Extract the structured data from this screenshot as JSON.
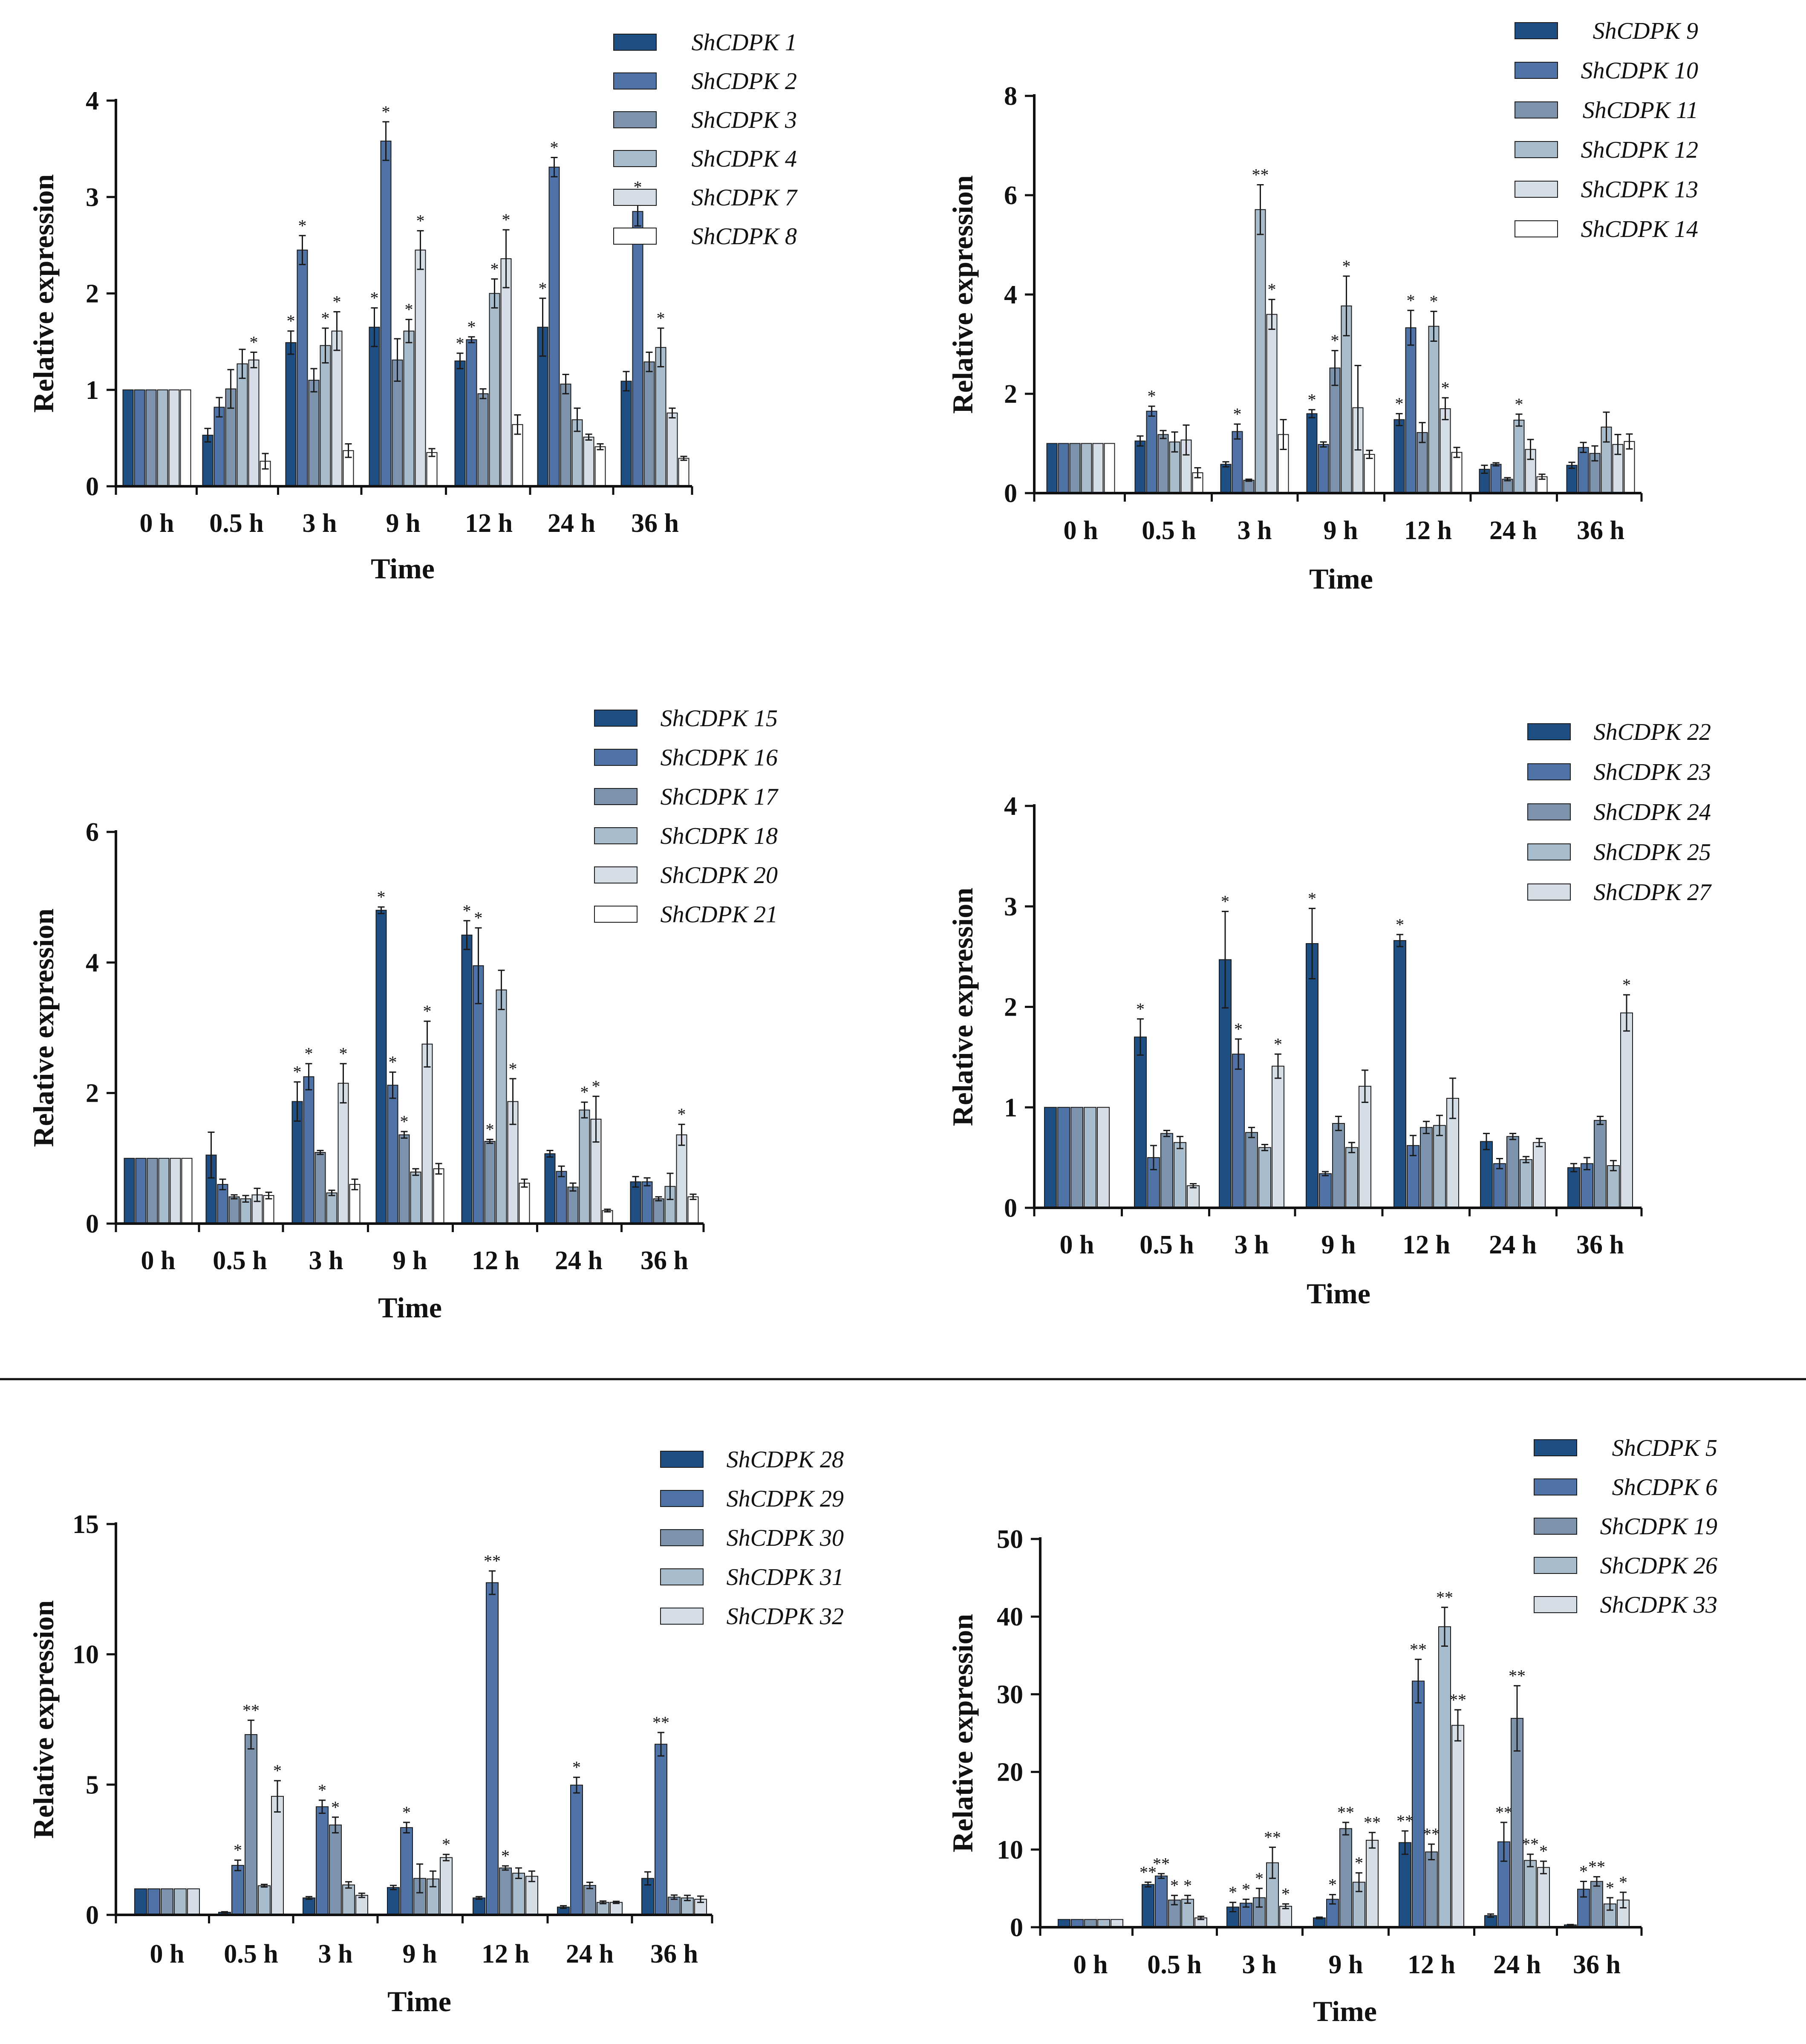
{
  "colors": [
    "#1f4e82",
    "#4f73a6",
    "#7d93ab",
    "#a9bccc",
    "#d5dee6",
    "#ffffff"
  ],
  "chart_data": [
    {
      "type": "bar",
      "categories": [
        "0 h",
        "0.5 h",
        "3 h",
        "9 h",
        "12 h",
        "24 h",
        "36 h"
      ],
      "xlabel": "Time",
      "ylabel": "Relative expression",
      "ylim": [
        0,
        4
      ],
      "yticks": [
        "0",
        "1",
        "2",
        "3",
        "4"
      ],
      "series": [
        {
          "name": "ShCDPK 1",
          "values": [
            1,
            0.53,
            1.49,
            1.65,
            1.3,
            1.65,
            1.09
          ],
          "errors": [
            0,
            0.07,
            0.12,
            0.2,
            0.08,
            0.3,
            0.1
          ],
          "sig": [
            "",
            "",
            "*",
            "*",
            "*",
            "*",
            ""
          ]
        },
        {
          "name": "ShCDPK 2",
          "values": [
            1,
            0.82,
            2.45,
            3.58,
            1.52,
            3.31,
            2.85
          ],
          "errors": [
            0,
            0.1,
            0.15,
            0.2,
            0.03,
            0.1,
            0.15
          ],
          "sig": [
            "",
            "",
            "*",
            "*",
            "*",
            "*",
            "*"
          ]
        },
        {
          "name": "ShCDPK 3",
          "values": [
            1,
            1.01,
            1.1,
            1.31,
            0.96,
            1.06,
            1.29
          ],
          "errors": [
            0,
            0.2,
            0.12,
            0.22,
            0.05,
            0.1,
            0.1
          ],
          "sig": [
            "",
            "",
            "",
            "",
            "",
            "",
            ""
          ]
        },
        {
          "name": "ShCDPK 4",
          "values": [
            1,
            1.27,
            1.46,
            1.61,
            2.0,
            0.69,
            1.44
          ],
          "errors": [
            0,
            0.15,
            0.18,
            0.12,
            0.15,
            0.12,
            0.2
          ],
          "sig": [
            "",
            "",
            "*",
            "*",
            "*",
            "",
            "*"
          ]
        },
        {
          "name": "ShCDPK 7",
          "values": [
            1,
            1.31,
            1.61,
            2.45,
            2.36,
            0.51,
            0.76
          ],
          "errors": [
            0,
            0.08,
            0.2,
            0.2,
            0.3,
            0.03,
            0.05
          ],
          "sig": [
            "",
            "*",
            "*",
            "*",
            "*",
            "",
            ""
          ]
        },
        {
          "name": "ShCDPK 8",
          "values": [
            1,
            0.26,
            0.37,
            0.35,
            0.64,
            0.41,
            0.29
          ],
          "errors": [
            0,
            0.08,
            0.07,
            0.04,
            0.1,
            0.03,
            0.02
          ],
          "sig": [
            "",
            "",
            "",
            "",
            "",
            "",
            ""
          ]
        }
      ]
    },
    {
      "type": "bar",
      "categories": [
        "0 h",
        "0.5 h",
        "3 h",
        "9 h",
        "12 h",
        "24 h",
        "36 h"
      ],
      "xlabel": "Time",
      "ylabel": "Relative expression",
      "ylim": [
        0,
        8
      ],
      "yticks": [
        "0",
        "2",
        "4",
        "6",
        "8"
      ],
      "series": [
        {
          "name": "ShCDPK 9",
          "values": [
            1,
            1.05,
            0.58,
            1.6,
            1.48,
            0.48,
            0.56
          ],
          "errors": [
            0,
            0.1,
            0.05,
            0.08,
            0.12,
            0.08,
            0.06
          ],
          "sig": [
            "",
            "",
            "",
            "*",
            "*",
            "",
            ""
          ]
        },
        {
          "name": "ShCDPK 10",
          "values": [
            1,
            1.65,
            1.24,
            0.98,
            3.33,
            0.58,
            0.92
          ],
          "errors": [
            0,
            0.1,
            0.15,
            0.05,
            0.35,
            0.03,
            0.1
          ],
          "sig": [
            "",
            "*",
            "*",
            "",
            "*",
            "",
            ""
          ]
        },
        {
          "name": "ShCDPK 11",
          "values": [
            1,
            1.18,
            0.26,
            2.52,
            1.22,
            0.28,
            0.8
          ],
          "errors": [
            0,
            0.08,
            0.02,
            0.35,
            0.2,
            0.03,
            0.15
          ],
          "sig": [
            "",
            "",
            "",
            "*",
            "",
            "",
            ""
          ]
        },
        {
          "name": "ShCDPK 12",
          "values": [
            1,
            1.03,
            5.71,
            3.77,
            3.36,
            1.47,
            1.33
          ],
          "errors": [
            0,
            0.2,
            0.5,
            0.6,
            0.3,
            0.12,
            0.3
          ],
          "sig": [
            "",
            "",
            "**",
            "*",
            "*",
            "*",
            ""
          ]
        },
        {
          "name": "ShCDPK 13",
          "values": [
            1,
            1.07,
            3.6,
            1.72,
            1.7,
            0.88,
            0.98
          ],
          "errors": [
            0,
            0.3,
            0.3,
            0.85,
            0.22,
            0.2,
            0.2
          ],
          "sig": [
            "",
            "",
            "*",
            "",
            "*",
            "",
            ""
          ]
        },
        {
          "name": "ShCDPK 14",
          "values": [
            1,
            0.41,
            1.18,
            0.78,
            0.82,
            0.33,
            1.04
          ],
          "errors": [
            0,
            0.1,
            0.3,
            0.08,
            0.1,
            0.05,
            0.15
          ],
          "sig": [
            "",
            "",
            "",
            "",
            "",
            "",
            ""
          ]
        }
      ]
    },
    {
      "type": "bar",
      "categories": [
        "0 h",
        "0.5 h",
        "3 h",
        "9 h",
        "12 h",
        "24 h",
        "36 h"
      ],
      "xlabel": "Time",
      "ylabel": "Relative expression",
      "ylim": [
        0,
        6
      ],
      "yticks": [
        "0",
        "2",
        "4",
        "6"
      ],
      "series": [
        {
          "name": "ShCDPK 15",
          "values": [
            1,
            1.05,
            1.87,
            4.8,
            4.42,
            1.07,
            0.64
          ],
          "errors": [
            0,
            0.35,
            0.3,
            0.05,
            0.22,
            0.05,
            0.08
          ],
          "sig": [
            "",
            "",
            "*",
            "*",
            "*",
            "",
            ""
          ]
        },
        {
          "name": "ShCDPK 16",
          "values": [
            1,
            0.6,
            2.25,
            2.12,
            3.95,
            0.8,
            0.64
          ],
          "errors": [
            0,
            0.08,
            0.2,
            0.2,
            0.58,
            0.08,
            0.06
          ],
          "sig": [
            "",
            "",
            "*",
            "*",
            "*",
            "",
            ""
          ]
        },
        {
          "name": "ShCDPK 17",
          "values": [
            1,
            0.41,
            1.09,
            1.36,
            1.26,
            0.56,
            0.38
          ],
          "errors": [
            0,
            0.03,
            0.03,
            0.05,
            0.03,
            0.06,
            0.03
          ],
          "sig": [
            "",
            "",
            "",
            "*",
            "*",
            "",
            ""
          ]
        },
        {
          "name": "ShCDPK 18",
          "values": [
            1,
            0.38,
            0.47,
            0.79,
            3.58,
            1.74,
            0.57
          ],
          "errors": [
            0,
            0.05,
            0.04,
            0.05,
            0.3,
            0.12,
            0.2
          ],
          "sig": [
            "",
            "",
            "",
            "",
            "",
            "*",
            ""
          ]
        },
        {
          "name": "ShCDPK 20",
          "values": [
            1,
            0.44,
            2.15,
            2.75,
            1.87,
            1.6,
            1.36
          ],
          "errors": [
            0,
            0.1,
            0.3,
            0.35,
            0.35,
            0.35,
            0.16
          ],
          "sig": [
            "",
            "",
            "*",
            "*",
            "*",
            "*",
            "*"
          ]
        },
        {
          "name": "ShCDPK 21",
          "values": [
            1,
            0.43,
            0.6,
            0.84,
            0.62,
            0.2,
            0.41
          ],
          "errors": [
            0,
            0.05,
            0.08,
            0.08,
            0.06,
            0.02,
            0.04
          ],
          "sig": [
            "",
            "",
            "",
            "",
            "",
            "",
            ""
          ]
        }
      ]
    },
    {
      "type": "bar",
      "categories": [
        "0 h",
        "0.5 h",
        "3 h",
        "9 h",
        "12 h",
        "24 h",
        "36 h"
      ],
      "xlabel": "Time",
      "ylabel": "Relative expression",
      "ylim": [
        0,
        4
      ],
      "yticks": [
        "0",
        "1",
        "2",
        "3",
        "4"
      ],
      "series": [
        {
          "name": "ShCDPK 22",
          "values": [
            1,
            1.7,
            2.47,
            2.63,
            2.66,
            0.66,
            0.4
          ],
          "errors": [
            0,
            0.18,
            0.48,
            0.35,
            0.06,
            0.08,
            0.04
          ],
          "sig": [
            "",
            "*",
            "*",
            "*",
            "*",
            "",
            ""
          ]
        },
        {
          "name": "ShCDPK 23",
          "values": [
            1,
            0.5,
            1.53,
            0.34,
            0.62,
            0.44,
            0.44
          ],
          "errors": [
            0,
            0.12,
            0.15,
            0.02,
            0.1,
            0.05,
            0.06
          ],
          "sig": [
            "",
            "",
            "*",
            "",
            "",
            "",
            ""
          ]
        },
        {
          "name": "ShCDPK 24",
          "values": [
            1,
            0.74,
            0.75,
            0.84,
            0.8,
            0.71,
            0.87
          ],
          "errors": [
            0,
            0.03,
            0.05,
            0.07,
            0.06,
            0.03,
            0.04
          ],
          "sig": [
            "",
            "",
            "",
            "",
            "",
            "",
            ""
          ]
        },
        {
          "name": "ShCDPK 25",
          "values": [
            1,
            0.65,
            0.6,
            0.6,
            0.82,
            0.48,
            0.42
          ],
          "errors": [
            0,
            0.06,
            0.03,
            0.05,
            0.1,
            0.03,
            0.05
          ],
          "sig": [
            "",
            "",
            "",
            "",
            "",
            "",
            ""
          ]
        },
        {
          "name": "ShCDPK 27",
          "values": [
            1,
            0.22,
            1.41,
            1.21,
            1.09,
            0.65,
            1.94
          ],
          "errors": [
            0,
            0.02,
            0.12,
            0.16,
            0.2,
            0.04,
            0.18
          ],
          "sig": [
            "",
            "",
            "*",
            "",
            "",
            "",
            "*"
          ]
        }
      ]
    },
    {
      "type": "bar",
      "categories": [
        "0 h",
        "0.5 h",
        "3 h",
        "9 h",
        "12 h",
        "24 h",
        "36 h"
      ],
      "xlabel": "Time",
      "ylabel": "Relative expression",
      "ylim": [
        0,
        15
      ],
      "yticks": [
        "0",
        "5",
        "10",
        "15"
      ],
      "series": [
        {
          "name": "ShCDPK 28",
          "values": [
            1,
            0.1,
            0.65,
            1.05,
            0.65,
            0.3,
            1.4
          ],
          "errors": [
            0,
            0.02,
            0.05,
            0.08,
            0.05,
            0.05,
            0.25
          ],
          "sig": [
            "",
            "",
            "",
            "",
            "",
            "",
            ""
          ]
        },
        {
          "name": "ShCDPK 29",
          "values": [
            1,
            1.9,
            4.15,
            3.35,
            12.75,
            4.98,
            6.55
          ],
          "errors": [
            0,
            0.2,
            0.25,
            0.2,
            0.45,
            0.3,
            0.45
          ],
          "sig": [
            "",
            "*",
            "*",
            "*",
            "**",
            "*",
            "**"
          ]
        },
        {
          "name": "ShCDPK 30",
          "values": [
            1,
            6.92,
            3.45,
            1.4,
            1.8,
            1.13,
            0.68
          ],
          "errors": [
            0,
            0.55,
            0.3,
            0.55,
            0.08,
            0.12,
            0.08
          ],
          "sig": [
            "",
            "**",
            "*",
            "",
            "*",
            "",
            ""
          ]
        },
        {
          "name": "ShCDPK 31",
          "values": [
            1,
            1.12,
            1.15,
            1.38,
            1.6,
            0.48,
            0.65
          ],
          "errors": [
            0,
            0.05,
            0.12,
            0.3,
            0.2,
            0.05,
            0.1
          ],
          "sig": [
            "",
            "",
            "",
            "",
            "",
            "",
            ""
          ]
        },
        {
          "name": "ShCDPK 32",
          "values": [
            1,
            4.55,
            0.75,
            2.2,
            1.48,
            0.48,
            0.6
          ],
          "errors": [
            0,
            0.6,
            0.08,
            0.12,
            0.2,
            0.04,
            0.12
          ],
          "sig": [
            "",
            "*",
            "",
            "*",
            "",
            "",
            ""
          ]
        }
      ]
    },
    {
      "type": "bar",
      "categories": [
        "0 h",
        "0.5 h",
        "3 h",
        "9 h",
        "12 h",
        "24 h",
        "36 h"
      ],
      "xlabel": "Time",
      "ylabel": "Relative expression",
      "ylim": [
        0,
        50
      ],
      "yticks": [
        "0",
        "10",
        "20",
        "30",
        "40",
        "50"
      ],
      "series": [
        {
          "name": "ShCDPK 5",
          "values": [
            1,
            5.5,
            2.6,
            1.2,
            10.9,
            1.5,
            0.3
          ],
          "errors": [
            0,
            0.3,
            0.6,
            0.1,
            1.5,
            0.2,
            0.05
          ],
          "sig": [
            "",
            "**",
            "*",
            "",
            "**",
            "",
            ""
          ]
        },
        {
          "name": "ShCDPK 6",
          "values": [
            1,
            6.6,
            3.1,
            3.6,
            31.7,
            11.0,
            4.9
          ],
          "errors": [
            0,
            0.3,
            0.5,
            0.6,
            2.8,
            2.5,
            1.0
          ],
          "sig": [
            "",
            "**",
            "*",
            "*",
            "**",
            "**",
            "*"
          ]
        },
        {
          "name": "ShCDPK 19",
          "values": [
            1,
            3.5,
            3.8,
            12.7,
            9.7,
            26.9,
            5.9
          ],
          "errors": [
            0,
            0.6,
            1.2,
            0.8,
            1.0,
            4.2,
            0.6
          ],
          "sig": [
            "",
            "*",
            "*",
            "**",
            "**",
            "**",
            "**"
          ]
        },
        {
          "name": "ShCDPK 26",
          "values": [
            1,
            3.6,
            8.3,
            5.8,
            38.7,
            8.6,
            3.0
          ],
          "errors": [
            0,
            0.5,
            2.0,
            1.2,
            2.5,
            0.8,
            0.8
          ],
          "sig": [
            "",
            "*",
            "**",
            "*",
            "**",
            "**",
            "*"
          ]
        },
        {
          "name": "ShCDPK 33",
          "values": [
            1,
            1.2,
            2.7,
            11.2,
            26.0,
            7.7,
            3.5
          ],
          "errors": [
            0,
            0.2,
            0.3,
            1.0,
            2.0,
            0.8,
            1.0
          ],
          "sig": [
            "",
            "",
            "*",
            "**",
            "**",
            "*",
            "*"
          ]
        }
      ]
    }
  ]
}
